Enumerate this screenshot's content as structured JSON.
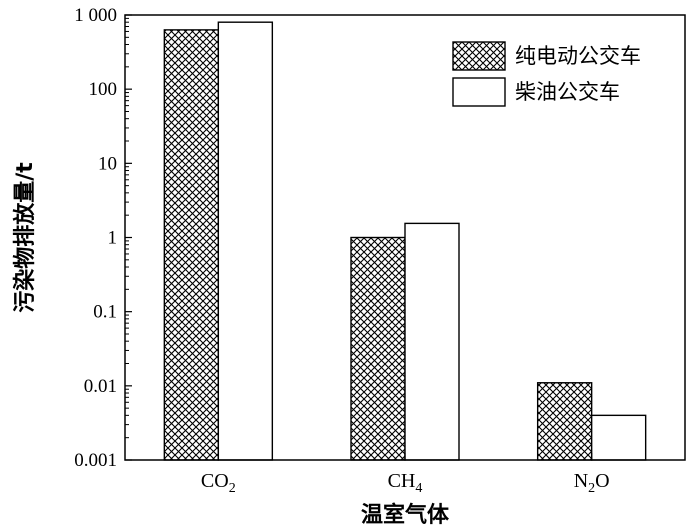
{
  "chart_data": {
    "type": "bar",
    "title": "",
    "xlabel": "温室气体",
    "ylabel": "污染物排放量/t",
    "y_scale": "log",
    "ylim": [
      0.001,
      1000
    ],
    "y_ticks": [
      {
        "value": 0.001,
        "label": "0.001"
      },
      {
        "value": 0.01,
        "label": "0.01"
      },
      {
        "value": 0.1,
        "label": "0.1"
      },
      {
        "value": 1,
        "label": "1"
      },
      {
        "value": 10,
        "label": "10"
      },
      {
        "value": 100,
        "label": "100"
      },
      {
        "value": 1000,
        "label": "1 000"
      }
    ],
    "categories": [
      {
        "base": "CO",
        "sub": "2",
        "tail": ""
      },
      {
        "base": "CH",
        "sub": "4",
        "tail": ""
      },
      {
        "base": "N",
        "sub": "2",
        "tail": "O"
      }
    ],
    "series": [
      {
        "name": "纯电动公交车",
        "fill": "hatch",
        "values": [
          630,
          1.0,
          0.011
        ]
      },
      {
        "name": "柴油公交车",
        "fill": "white",
        "values": [
          800,
          1.55,
          0.004
        ]
      }
    ],
    "legend": {
      "position": "top-right"
    },
    "grid": false,
    "colors": {
      "stroke": "#000000",
      "background": "#ffffff"
    }
  }
}
